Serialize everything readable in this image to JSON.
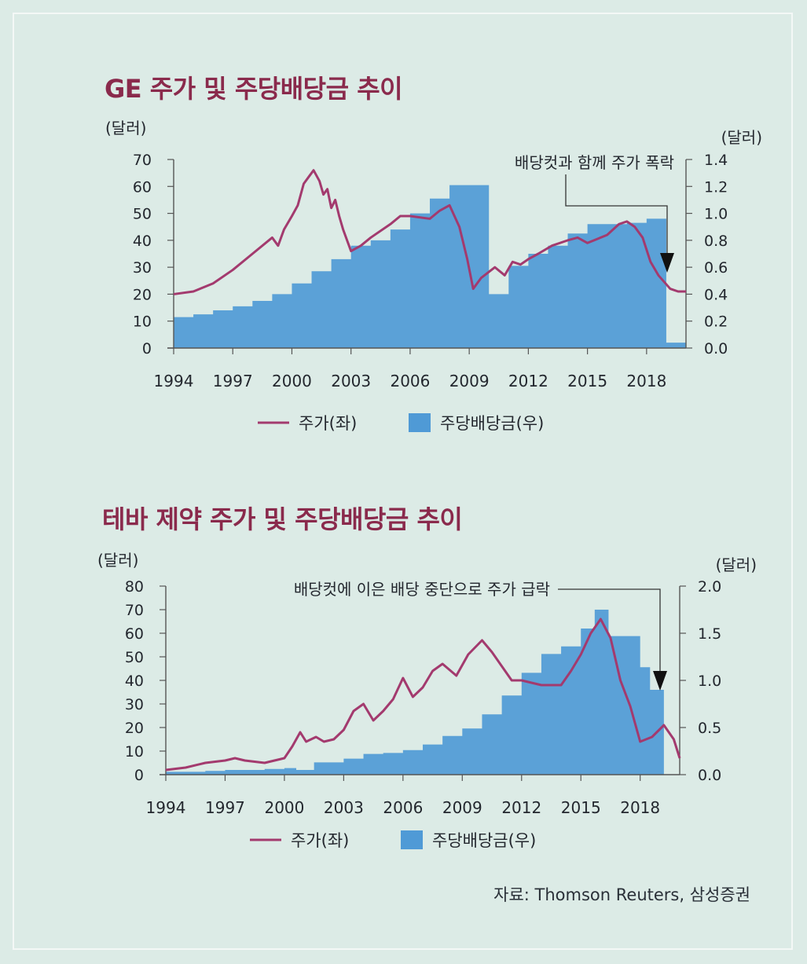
{
  "source_note": "자료: Thomson Reuters, 삼성증권",
  "colors": {
    "price_line": "#a33a6e",
    "dividend_area": "#4f9ad6",
    "title": "#8a2a4c",
    "background": "#dcebe6"
  },
  "legend": {
    "price_label": "주가(좌)",
    "dividend_label": "주당배당금(우)"
  },
  "chart_data": [
    {
      "type": "line+area",
      "title": "GE 주가 및 주당배당금 추이",
      "y_left_unit": "(달러)",
      "y_right_unit": "(달러)",
      "y_left_range": [
        0,
        70
      ],
      "y_right_range": [
        0,
        1.4
      ],
      "y_left_ticks": [
        "70",
        "60",
        "50",
        "40",
        "30",
        "20",
        "10",
        "0"
      ],
      "y_right_ticks": [
        "1.4",
        "1.2",
        "1.0",
        "0.8",
        "0.6",
        "0.4",
        "0.2",
        "0.0"
      ],
      "x_range": [
        1994,
        2020
      ],
      "x_ticks": [
        "1994",
        "1997",
        "2000",
        "2003",
        "2006",
        "2009",
        "2012",
        "2015",
        "2018"
      ],
      "annotation": "배당컷과 함께 주가 폭락",
      "series": [
        {
          "name": "주가(좌)",
          "axis": "left",
          "x": [
            1994,
            1995,
            1996,
            1997,
            1998,
            1999,
            1999.3,
            1999.6,
            2000,
            2000.3,
            2000.6,
            2000.9,
            2001.1,
            2001.4,
            2001.6,
            2001.8,
            2002,
            2002.2,
            2002.4,
            2002.6,
            2002.8,
            2003,
            2003.5,
            2004,
            2005,
            2005.5,
            2006,
            2007,
            2007.5,
            2008,
            2008.5,
            2008.9,
            2009.2,
            2009.6,
            2010.3,
            2010.8,
            2011.2,
            2011.6,
            2012,
            2012.5,
            2013.2,
            2014,
            2014.5,
            2015,
            2016,
            2016.6,
            2017,
            2017.4,
            2017.8,
            2018.2,
            2018.6,
            2019.2,
            2019.6,
            2020
          ],
          "values": [
            20,
            21,
            24,
            29,
            35,
            41,
            38,
            44,
            49,
            53,
            61,
            64,
            66,
            62,
            57,
            59,
            52,
            55,
            49,
            44,
            40,
            36,
            38,
            41,
            46,
            49,
            49,
            48,
            51,
            53,
            45,
            33,
            22,
            26,
            30,
            27,
            32,
            31,
            33,
            35,
            38,
            40,
            41,
            39,
            42,
            46,
            47,
            45,
            41,
            32,
            27,
            22,
            21,
            21
          ]
        },
        {
          "name": "주당배당금(우)",
          "axis": "right",
          "type": "step-area",
          "x": [
            1994,
            1995,
            1996,
            1997,
            1998,
            1999,
            2000,
            2001,
            2002,
            2003,
            2004,
            2005,
            2006,
            2007,
            2008,
            2009,
            2010,
            2011,
            2012,
            2013,
            2014,
            2015,
            2016,
            2017,
            2018,
            2019
          ],
          "values": [
            0.23,
            0.25,
            0.28,
            0.31,
            0.35,
            0.4,
            0.48,
            0.57,
            0.66,
            0.76,
            0.8,
            0.88,
            1.0,
            1.11,
            1.21,
            1.21,
            0.4,
            0.61,
            0.7,
            0.76,
            0.85,
            0.92,
            0.92,
            0.93,
            0.96,
            0.04
          ],
          "x_end": 2020
        }
      ]
    },
    {
      "type": "line+area",
      "title": "테바 제약 주가 및 주당배당금 추이",
      "y_left_unit": "(달러)",
      "y_right_unit": "(달러)",
      "y_left_range": [
        0,
        80
      ],
      "y_right_range": [
        0,
        2.0
      ],
      "y_left_ticks": [
        "80",
        "70",
        "60",
        "50",
        "40",
        "30",
        "20",
        "10",
        "0"
      ],
      "y_right_ticks": [
        "2.0",
        "1.5",
        "1.0",
        "0.5",
        "0.0"
      ],
      "x_range": [
        1994,
        2020
      ],
      "x_ticks": [
        "1994",
        "1997",
        "2000",
        "2003",
        "2006",
        "2009",
        "2012",
        "2015",
        "2018"
      ],
      "annotation": "배당컷에 이은 배당 중단으로 주가 급락",
      "series": [
        {
          "name": "주가(좌)",
          "axis": "left",
          "x": [
            1994,
            1995,
            1996,
            1997,
            1997.5,
            1998,
            1999,
            2000,
            2000.4,
            2000.8,
            2001.1,
            2001.6,
            2002,
            2002.5,
            2003,
            2003.5,
            2004,
            2004.5,
            2005,
            2005.5,
            2006,
            2006.5,
            2007,
            2007.5,
            2008,
            2008.7,
            2009.3,
            2010,
            2010.5,
            2011,
            2011.5,
            2012,
            2012.5,
            2013,
            2014,
            2014.5,
            2015,
            2015.5,
            2016,
            2016.5,
            2017,
            2017.5,
            2018,
            2018.6,
            2019.2,
            2019.7,
            2020
          ],
          "values": [
            2,
            3,
            5,
            6,
            7,
            6,
            5,
            7,
            12,
            18,
            14,
            16,
            14,
            15,
            19,
            27,
            30,
            23,
            27,
            32,
            41,
            33,
            37,
            44,
            47,
            42,
            51,
            57,
            52,
            46,
            40,
            40,
            39,
            38,
            38,
            44,
            51,
            60,
            66,
            58,
            40,
            29,
            14,
            16,
            21,
            15,
            7
          ]
        },
        {
          "name": "주당배당금(우)",
          "axis": "right",
          "type": "step-area",
          "x": [
            1994,
            1995,
            1996,
            1997,
            1998,
            1999,
            2000,
            2000.6,
            2001.5,
            2003,
            2004,
            2005,
            2006,
            2007,
            2008,
            2009,
            2010,
            2011,
            2012,
            2013,
            2014,
            2015,
            2015.7,
            2016.4,
            2017,
            2018,
            2018.5,
            2019.2
          ],
          "values": [
            0.03,
            0.03,
            0.04,
            0.05,
            0.05,
            0.06,
            0.07,
            0.05,
            0.13,
            0.17,
            0.22,
            0.23,
            0.26,
            0.32,
            0.41,
            0.49,
            0.64,
            0.84,
            1.08,
            1.28,
            1.36,
            1.55,
            1.75,
            1.47,
            1.47,
            1.14,
            0.9,
            0
          ],
          "x_end": 2019.3
        }
      ]
    }
  ]
}
